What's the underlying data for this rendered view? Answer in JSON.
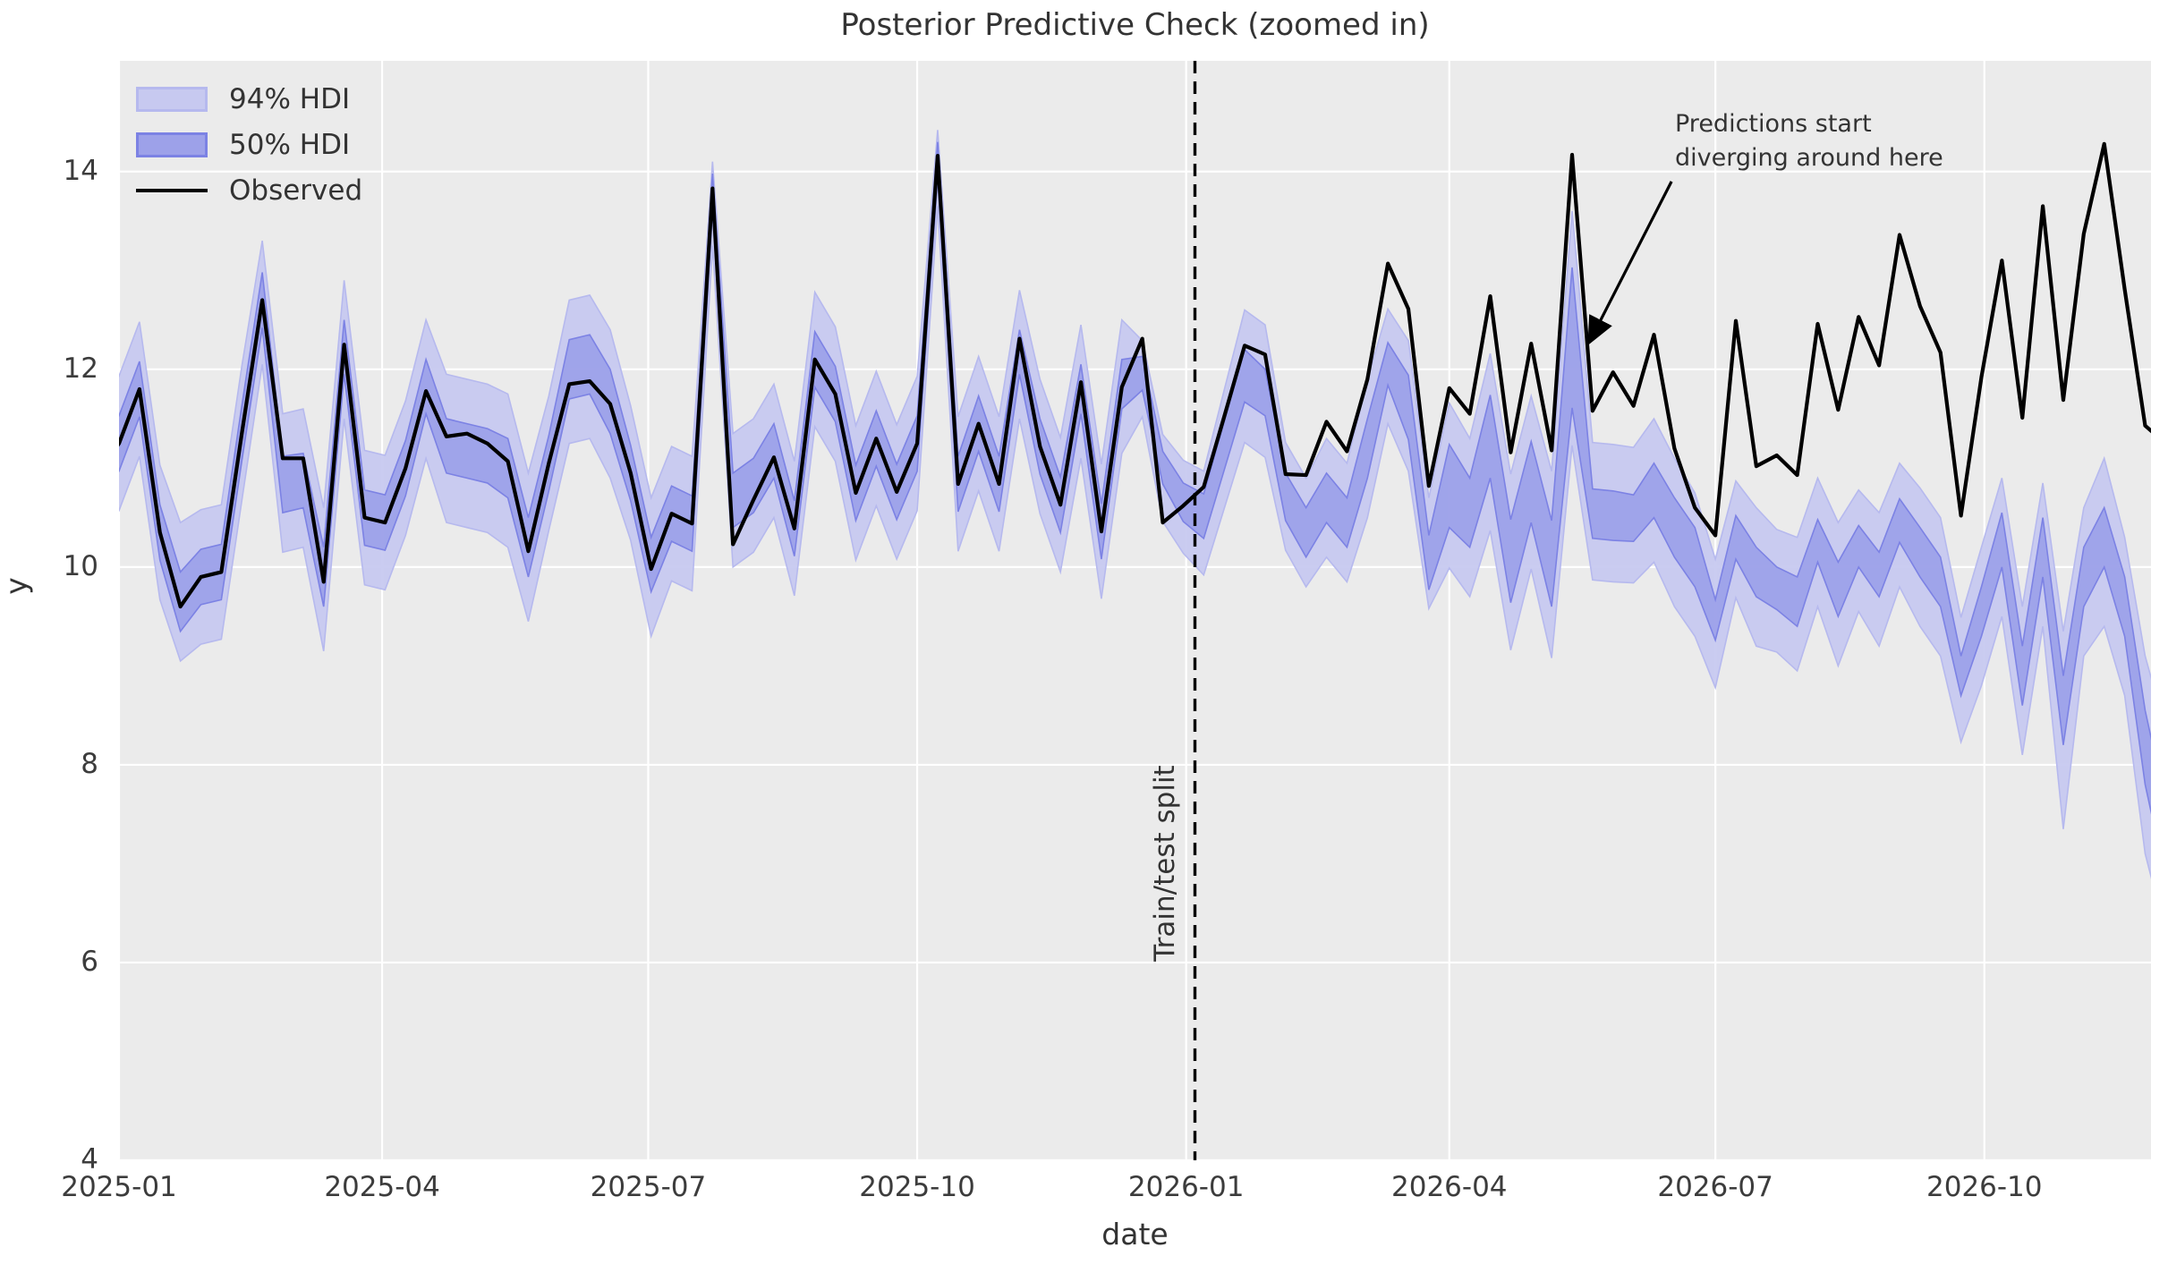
{
  "title": "Posterior Predictive Check (zoomed in)",
  "colors": {
    "figure_bg": "#ffffff",
    "plot_bg": "#ebebeb",
    "grid": "#ffffff",
    "hdi94_fill": "#c7c9f0",
    "hdi94_edge": "#b6b9ee",
    "hdi50_fill": "#9da1e9",
    "hdi50_edge": "#7c82e4",
    "observed_line": "#000000",
    "split_line": "#000000",
    "text": "#333333"
  },
  "legend": {
    "items": [
      {
        "label": "94% HDI",
        "swatch": "hdi94-patch"
      },
      {
        "label": "50% HDI",
        "swatch": "hdi50-patch"
      },
      {
        "label": "Observed",
        "swatch": "black-line"
      }
    ]
  },
  "split": {
    "label": "Train/test split",
    "day": 368
  },
  "annotation": {
    "line1": "Predictions start",
    "line2": "diverging around here",
    "arrow": {
      "from": {
        "day": 531,
        "value": 13.9
      },
      "to": {
        "day": 503,
        "value": 12.28
      }
    }
  },
  "axes": {
    "xlabel": "date",
    "ylabel": "y",
    "epoch": "2025-01-01",
    "xlim_days": [
      0,
      695
    ],
    "ylim": [
      4,
      15.12
    ],
    "x_ticks": [
      {
        "label": "2025-01",
        "day": 0
      },
      {
        "label": "2025-04",
        "day": 90
      },
      {
        "label": "2025-07",
        "day": 181
      },
      {
        "label": "2025-10",
        "day": 273
      },
      {
        "label": "2026-01",
        "day": 365
      },
      {
        "label": "2026-04",
        "day": 455
      },
      {
        "label": "2026-07",
        "day": 546
      },
      {
        "label": "2026-10",
        "day": 638
      }
    ],
    "y_ticks": [
      4,
      6,
      8,
      10,
      12,
      14
    ],
    "grid": true,
    "legend_position": "upper left"
  },
  "chart_data": {
    "type": "line",
    "x_unit": "days since 2025-01-01, weekly cadence",
    "days": [
      -7,
      0,
      7,
      14,
      21,
      28,
      35,
      42,
      49,
      56,
      63,
      70,
      77,
      84,
      91,
      98,
      105,
      112,
      119,
      126,
      133,
      140,
      147,
      154,
      161,
      168,
      175,
      182,
      189,
      196,
      203,
      210,
      217,
      224,
      231,
      238,
      245,
      252,
      259,
      266,
      273,
      280,
      287,
      294,
      301,
      308,
      315,
      322,
      329,
      336,
      343,
      350,
      357,
      364,
      371,
      378,
      385,
      392,
      399,
      406,
      413,
      420,
      427,
      434,
      441,
      448,
      455,
      462,
      469,
      476,
      483,
      490,
      497,
      504,
      511,
      518,
      525,
      532,
      539,
      546,
      553,
      560,
      567,
      574,
      581,
      588,
      595,
      602,
      609,
      616,
      623,
      630,
      637,
      644,
      651,
      658,
      665,
      672,
      679,
      686,
      693,
      700
    ],
    "series": [
      {
        "name": "Observed",
        "values": [
          10.95,
          11.25,
          11.8,
          10.35,
          9.6,
          9.9,
          9.95,
          11.35,
          12.7,
          11.1,
          11.1,
          9.85,
          12.25,
          10.5,
          10.45,
          11.0,
          11.78,
          11.32,
          11.35,
          11.25,
          11.07,
          10.16,
          11.05,
          11.85,
          11.88,
          11.65,
          10.95,
          9.98,
          10.54,
          10.44,
          13.83,
          10.23,
          10.68,
          11.11,
          10.39,
          12.1,
          11.75,
          10.75,
          11.3,
          10.76,
          11.25,
          14.16,
          10.84,
          11.45,
          10.84,
          12.31,
          11.22,
          10.63,
          11.87,
          10.36,
          11.82,
          12.31,
          10.45,
          10.62,
          10.81,
          11.52,
          12.24,
          12.15,
          10.94,
          10.93,
          11.47,
          11.17,
          11.9,
          13.07,
          12.61,
          10.82,
          11.81,
          11.55,
          12.74,
          11.16,
          12.26,
          11.18,
          14.17,
          11.58,
          11.97,
          11.63,
          12.35,
          11.2,
          10.6,
          10.32,
          12.49,
          11.02,
          11.13,
          10.93,
          12.46,
          11.59,
          12.53,
          12.04,
          13.36,
          12.64,
          12.17,
          10.52,
          11.92,
          13.1,
          11.51,
          13.65,
          11.69,
          13.37,
          14.28,
          12.81,
          11.43,
          11.25
        ]
      },
      {
        "name": "50% HDI lower",
        "values": [
          10.67,
          10.97,
          11.52,
          10.07,
          9.35,
          9.62,
          9.67,
          11.07,
          12.42,
          10.55,
          10.6,
          9.6,
          11.95,
          10.22,
          10.17,
          10.72,
          11.55,
          10.95,
          10.9,
          10.85,
          10.7,
          9.9,
          10.77,
          11.7,
          11.75,
          11.35,
          10.67,
          9.75,
          10.26,
          10.16,
          13.6,
          10.4,
          10.55,
          10.9,
          10.11,
          11.82,
          11.47,
          10.47,
          11.02,
          10.48,
          10.97,
          13.95,
          10.56,
          11.17,
          10.56,
          11.95,
          10.94,
          10.35,
          11.55,
          10.08,
          11.6,
          11.79,
          10.84,
          10.46,
          10.29,
          10.98,
          11.67,
          11.53,
          10.47,
          10.1,
          10.45,
          10.2,
          10.9,
          11.84,
          11.29,
          9.77,
          10.4,
          10.2,
          10.9,
          9.64,
          10.45,
          9.6,
          11.61,
          10.29,
          10.27,
          10.26,
          10.5,
          10.1,
          9.8,
          9.26,
          10.08,
          9.7,
          9.57,
          9.4,
          10.05,
          9.5,
          10.0,
          9.7,
          10.25,
          9.9,
          9.6,
          8.7,
          9.3,
          10.0,
          8.6,
          9.9,
          8.2,
          9.6,
          10.0,
          9.3,
          7.8,
          6.85
        ]
      },
      {
        "name": "50% HDI upper",
        "values": [
          11.23,
          11.53,
          12.08,
          10.63,
          9.95,
          10.18,
          10.23,
          11.63,
          12.98,
          11.12,
          11.15,
          10.2,
          12.5,
          10.78,
          10.73,
          11.28,
          12.1,
          11.5,
          11.45,
          11.4,
          11.3,
          10.5,
          11.33,
          12.3,
          12.35,
          12.0,
          11.23,
          10.3,
          10.82,
          10.72,
          13.98,
          10.95,
          11.1,
          11.45,
          10.67,
          12.38,
          12.03,
          11.03,
          11.58,
          11.04,
          11.53,
          14.3,
          11.12,
          11.73,
          11.12,
          12.4,
          11.5,
          10.91,
          12.05,
          10.64,
          12.1,
          12.13,
          11.17,
          10.85,
          10.74,
          11.47,
          12.2,
          12.0,
          10.95,
          10.6,
          10.95,
          10.7,
          11.5,
          12.27,
          11.94,
          10.32,
          11.24,
          10.9,
          11.74,
          10.48,
          11.27,
          10.47,
          13.03,
          10.79,
          10.77,
          10.73,
          11.05,
          10.7,
          10.4,
          9.67,
          10.52,
          10.2,
          10.0,
          9.9,
          10.48,
          10.05,
          10.42,
          10.15,
          10.69,
          10.4,
          10.1,
          9.1,
          9.8,
          10.55,
          9.2,
          10.5,
          8.9,
          10.2,
          10.6,
          9.9,
          8.55,
          7.6
        ]
      },
      {
        "name": "94% HDI lower",
        "values": [
          10.27,
          10.57,
          11.12,
          9.67,
          9.05,
          9.22,
          9.27,
          10.67,
          12.05,
          10.15,
          10.2,
          9.15,
          11.5,
          9.82,
          9.77,
          10.32,
          11.1,
          10.45,
          10.4,
          10.35,
          10.2,
          9.45,
          10.37,
          11.25,
          11.3,
          10.9,
          10.27,
          9.3,
          9.86,
          9.76,
          13.25,
          10.0,
          10.15,
          10.5,
          9.71,
          11.42,
          11.07,
          10.07,
          10.62,
          10.08,
          10.57,
          13.65,
          10.16,
          10.77,
          10.16,
          11.5,
          10.54,
          9.95,
          11.1,
          9.68,
          11.15,
          11.52,
          10.46,
          10.14,
          9.92,
          10.59,
          11.26,
          11.11,
          10.17,
          9.8,
          10.1,
          9.85,
          10.5,
          11.45,
          10.97,
          9.58,
          9.99,
          9.7,
          10.37,
          9.16,
          9.98,
          9.08,
          11.23,
          9.87,
          9.85,
          9.84,
          10.05,
          9.6,
          9.3,
          8.78,
          9.69,
          9.2,
          9.14,
          8.95,
          9.6,
          9.0,
          9.55,
          9.2,
          9.8,
          9.4,
          9.1,
          8.23,
          8.8,
          9.5,
          8.1,
          9.4,
          7.35,
          9.1,
          9.4,
          8.7,
          7.1,
          6.3
        ]
      },
      {
        "name": "94% HDI upper",
        "values": [
          11.63,
          11.93,
          12.48,
          11.03,
          10.45,
          10.58,
          10.63,
          12.03,
          13.3,
          11.55,
          11.6,
          10.6,
          12.9,
          11.18,
          11.13,
          11.68,
          12.5,
          11.95,
          11.9,
          11.85,
          11.75,
          10.95,
          11.73,
          12.7,
          12.75,
          12.4,
          11.63,
          10.7,
          11.22,
          11.12,
          14.1,
          11.35,
          11.5,
          11.85,
          11.07,
          12.78,
          12.43,
          11.43,
          11.98,
          11.44,
          11.93,
          14.42,
          11.52,
          12.13,
          11.52,
          12.8,
          11.9,
          11.31,
          12.45,
          11.04,
          12.5,
          12.29,
          11.34,
          11.08,
          10.97,
          11.79,
          12.6,
          12.45,
          11.26,
          10.9,
          11.3,
          11.05,
          11.9,
          12.61,
          12.29,
          10.7,
          11.66,
          11.3,
          12.16,
          10.94,
          11.73,
          10.97,
          13.6,
          11.26,
          11.24,
          11.21,
          11.5,
          11.1,
          10.75,
          10.08,
          10.87,
          10.6,
          10.38,
          10.3,
          10.9,
          10.45,
          10.78,
          10.55,
          11.05,
          10.8,
          10.5,
          9.49,
          10.2,
          10.9,
          9.6,
          10.85,
          9.35,
          10.6,
          11.1,
          10.3,
          9.1,
          8.35
        ]
      }
    ],
    "notes": "Weekly series. Train/test split at 2026-01 (day 368); observed continues high while posterior predictive HDI bands drift downward after the split."
  }
}
